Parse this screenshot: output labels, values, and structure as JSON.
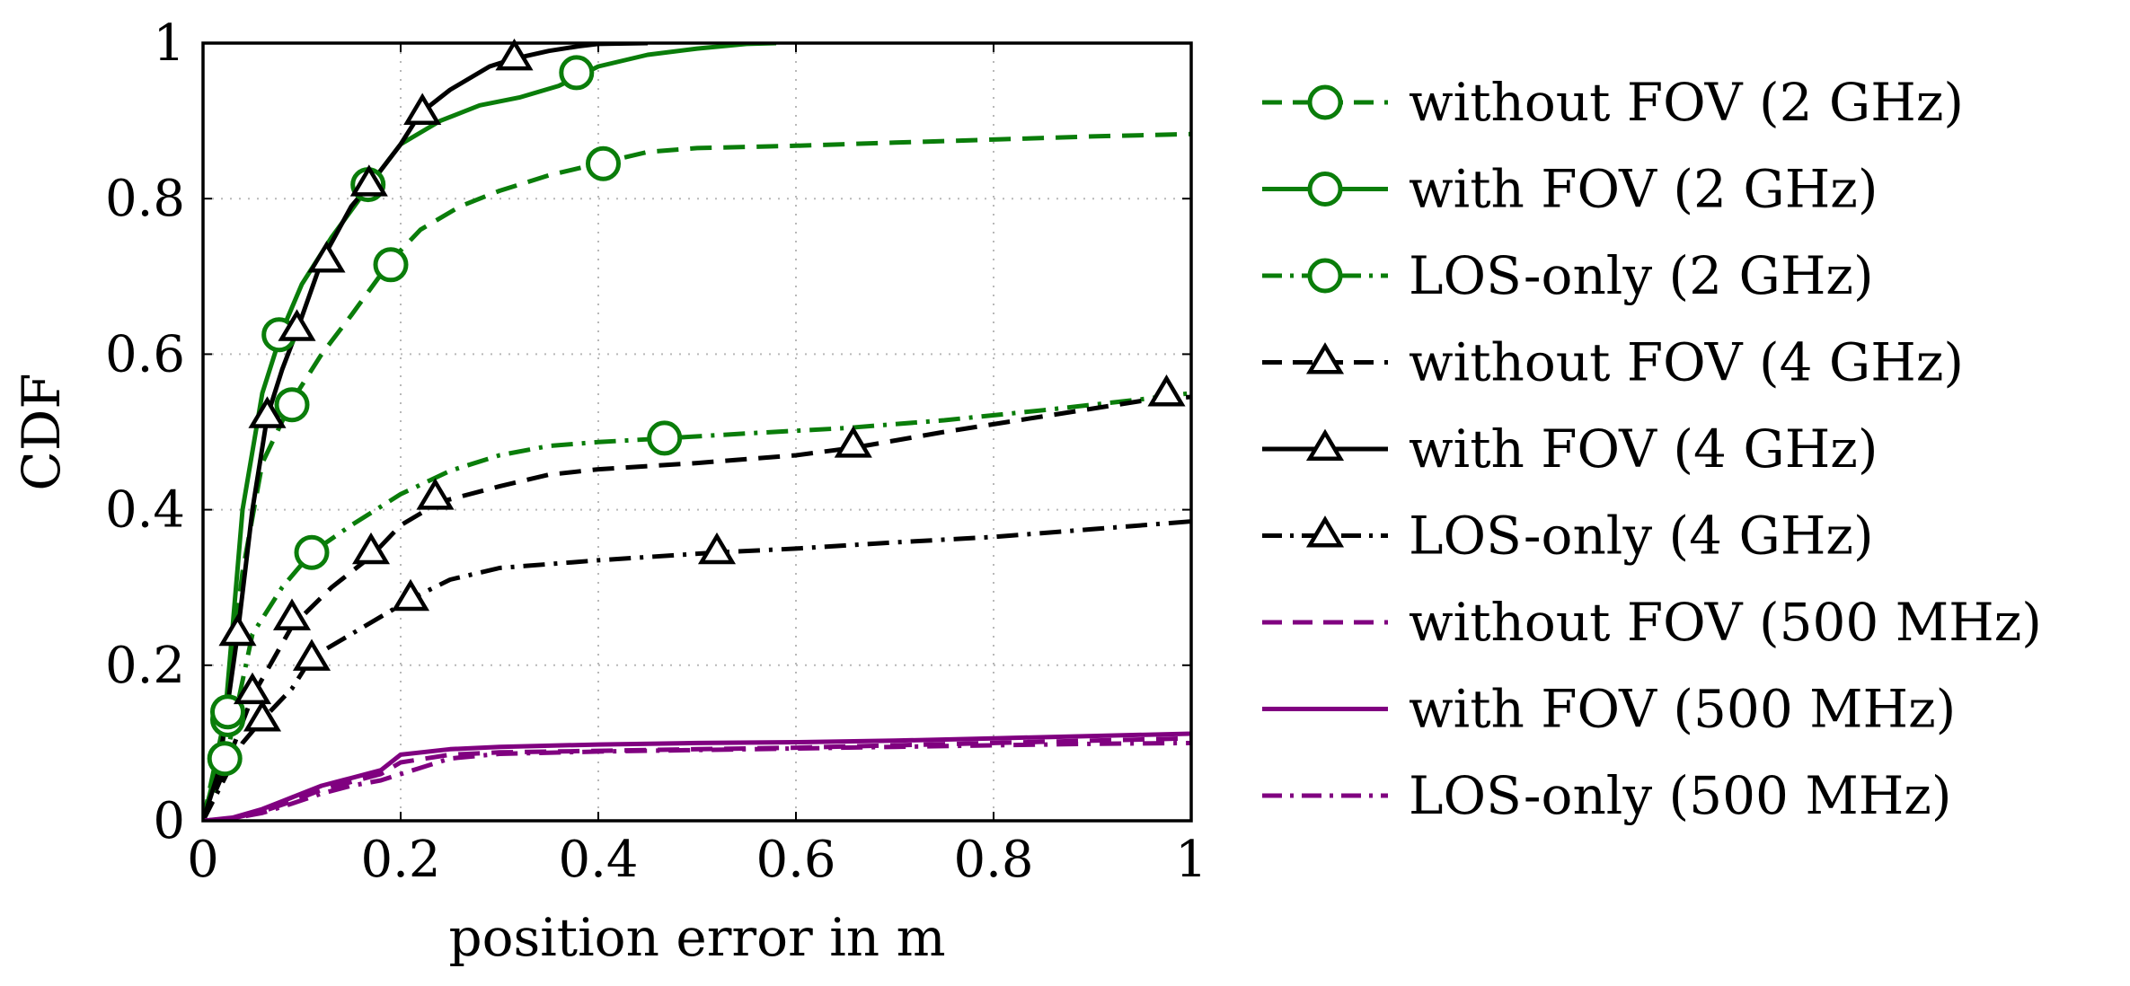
{
  "chart_data": {
    "type": "line",
    "title": "",
    "xlabel": "position error in m",
    "ylabel": "CDF",
    "xlim": [
      0,
      1
    ],
    "ylim": [
      0,
      1
    ],
    "xticks": [
      "0",
      "0.2",
      "0.4",
      "0.6",
      "0.8",
      "1"
    ],
    "yticks": [
      "0",
      "0.2",
      "0.4",
      "0.6",
      "0.8",
      "1"
    ],
    "grid": true,
    "legend_position": "outside-right",
    "series": [
      {
        "name": "without FOV (2 GHz)",
        "color": "#0a7d0a",
        "dash": "dashed",
        "marker": "circle",
        "x": [
          0,
          0.02,
          0.04,
          0.06,
          0.09,
          0.12,
          0.15,
          0.19,
          0.22,
          0.26,
          0.3,
          0.35,
          0.4,
          0.45,
          0.5,
          0.6,
          0.7,
          0.8,
          0.9,
          1.0
        ],
        "y": [
          0,
          0.12,
          0.32,
          0.46,
          0.54,
          0.6,
          0.65,
          0.72,
          0.76,
          0.79,
          0.81,
          0.83,
          0.845,
          0.86,
          0.865,
          0.868,
          0.872,
          0.876,
          0.88,
          0.883
        ],
        "markers_x": [
          0.025,
          0.09,
          0.19,
          0.405
        ],
        "markers_y": [
          0.13,
          0.535,
          0.715,
          0.845
        ]
      },
      {
        "name": "with FOV (2 GHz)",
        "color": "#0a7d0a",
        "dash": "solid",
        "marker": "circle",
        "x": [
          0,
          0.02,
          0.04,
          0.06,
          0.08,
          0.1,
          0.13,
          0.17,
          0.2,
          0.24,
          0.28,
          0.32,
          0.36,
          0.4,
          0.45,
          0.5,
          0.55,
          0.58
        ],
        "y": [
          0,
          0.1,
          0.4,
          0.55,
          0.63,
          0.69,
          0.75,
          0.82,
          0.87,
          0.9,
          0.92,
          0.93,
          0.945,
          0.97,
          0.985,
          0.993,
          0.999,
          1.0
        ],
        "markers_x": [
          0.025,
          0.077,
          0.167,
          0.378
        ],
        "markers_y": [
          0.14,
          0.625,
          0.818,
          0.962
        ]
      },
      {
        "name": "LOS-only (2 GHz)",
        "color": "#0a7d0a",
        "dash": "dashdot",
        "marker": "circle",
        "x": [
          0,
          0.02,
          0.05,
          0.08,
          0.11,
          0.15,
          0.2,
          0.25,
          0.3,
          0.35,
          0.4,
          0.47,
          0.55,
          0.65,
          0.75,
          0.85,
          0.95,
          1.0
        ],
        "y": [
          0,
          0.06,
          0.24,
          0.3,
          0.345,
          0.38,
          0.42,
          0.45,
          0.47,
          0.482,
          0.487,
          0.492,
          0.498,
          0.505,
          0.515,
          0.528,
          0.542,
          0.55
        ],
        "markers_x": [
          0.022,
          0.11,
          0.467
        ],
        "markers_y": [
          0.08,
          0.345,
          0.492
        ]
      },
      {
        "name": "without FOV (4 GHz)",
        "color": "#000000",
        "dash": "dashed",
        "marker": "triangle",
        "x": [
          0,
          0.02,
          0.05,
          0.09,
          0.13,
          0.17,
          0.2,
          0.24,
          0.3,
          0.35,
          0.4,
          0.5,
          0.6,
          0.66,
          0.75,
          0.85,
          0.95,
          1.0
        ],
        "y": [
          0,
          0.06,
          0.16,
          0.25,
          0.3,
          0.34,
          0.38,
          0.41,
          0.43,
          0.445,
          0.452,
          0.46,
          0.47,
          0.48,
          0.5,
          0.52,
          0.54,
          0.545
        ],
        "markers_x": [
          0.05,
          0.09,
          0.17,
          0.235,
          0.658,
          0.975
        ],
        "markers_y": [
          0.165,
          0.26,
          0.345,
          0.415,
          0.482,
          0.548
        ]
      },
      {
        "name": "with FOV (4 GHz)",
        "color": "#000000",
        "dash": "solid",
        "marker": "triangle",
        "x": [
          0,
          0.015,
          0.035,
          0.05,
          0.065,
          0.08,
          0.095,
          0.12,
          0.15,
          0.17,
          0.2,
          0.22,
          0.25,
          0.29,
          0.315,
          0.35,
          0.38,
          0.4,
          0.45
        ],
        "y": [
          0,
          0.06,
          0.24,
          0.4,
          0.52,
          0.58,
          0.63,
          0.72,
          0.79,
          0.82,
          0.87,
          0.91,
          0.94,
          0.97,
          0.98,
          0.99,
          0.996,
          0.999,
          1.0
        ],
        "markers_x": [
          0.035,
          0.065,
          0.095,
          0.125,
          0.168,
          0.222,
          0.315
        ],
        "markers_y": [
          0.24,
          0.52,
          0.632,
          0.72,
          0.818,
          0.91,
          0.98
        ]
      },
      {
        "name": "LOS-only (4 GHz)",
        "color": "#000000",
        "dash": "dashdot",
        "marker": "triangle",
        "x": [
          0,
          0.02,
          0.04,
          0.06,
          0.09,
          0.11,
          0.15,
          0.19,
          0.21,
          0.25,
          0.3,
          0.4,
          0.52,
          0.6,
          0.7,
          0.8,
          0.9,
          1.0
        ],
        "y": [
          0,
          0.05,
          0.1,
          0.13,
          0.17,
          0.21,
          0.24,
          0.27,
          0.285,
          0.31,
          0.325,
          0.335,
          0.345,
          0.35,
          0.358,
          0.365,
          0.375,
          0.385
        ],
        "markers_x": [
          0.06,
          0.11,
          0.21,
          0.52
        ],
        "markers_y": [
          0.13,
          0.208,
          0.285,
          0.345
        ]
      },
      {
        "name": "without FOV (500 MHz)",
        "color": "#800080",
        "dash": "dashed",
        "marker": "none",
        "x": [
          0,
          0.03,
          0.06,
          0.09,
          0.12,
          0.15,
          0.18,
          0.2,
          0.25,
          0.3,
          0.4,
          0.5,
          0.6,
          0.7,
          0.8,
          0.9,
          1.0
        ],
        "y": [
          0,
          0.003,
          0.012,
          0.025,
          0.04,
          0.05,
          0.06,
          0.075,
          0.085,
          0.088,
          0.09,
          0.092,
          0.094,
          0.097,
          0.1,
          0.103,
          0.106
        ],
        "markers_x": [],
        "markers_y": []
      },
      {
        "name": "with FOV (500 MHz)",
        "color": "#800080",
        "dash": "solid",
        "marker": "none",
        "x": [
          0,
          0.03,
          0.06,
          0.09,
          0.12,
          0.15,
          0.18,
          0.2,
          0.25,
          0.3,
          0.4,
          0.5,
          0.6,
          0.7,
          0.8,
          0.9,
          1.0
        ],
        "y": [
          0,
          0.004,
          0.015,
          0.03,
          0.045,
          0.055,
          0.065,
          0.085,
          0.092,
          0.095,
          0.098,
          0.1,
          0.101,
          0.103,
          0.106,
          0.109,
          0.112
        ],
        "markers_x": [],
        "markers_y": []
      },
      {
        "name": "LOS-only (500 MHz)",
        "color": "#800080",
        "dash": "dashdot",
        "marker": "none",
        "x": [
          0,
          0.03,
          0.06,
          0.09,
          0.12,
          0.15,
          0.18,
          0.2,
          0.22,
          0.25,
          0.3,
          0.4,
          0.5,
          0.6,
          0.7,
          0.8,
          0.9,
          1.0
        ],
        "y": [
          0,
          0.003,
          0.01,
          0.022,
          0.035,
          0.045,
          0.052,
          0.06,
          0.068,
          0.08,
          0.086,
          0.089,
          0.091,
          0.093,
          0.095,
          0.097,
          0.099,
          0.1
        ],
        "markers_x": [],
        "markers_y": []
      }
    ]
  }
}
